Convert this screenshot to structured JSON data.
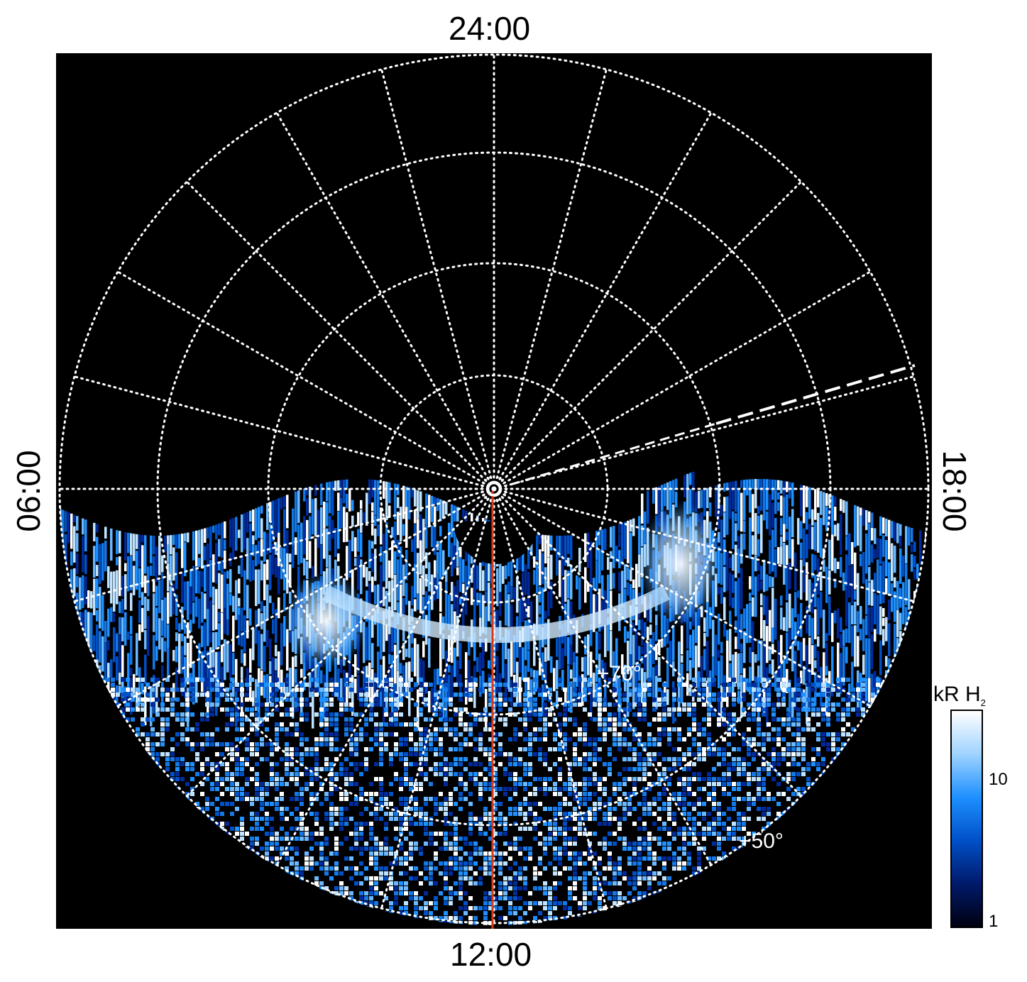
{
  "image": {
    "labels": {
      "top": "24:00",
      "bottom": "12:00",
      "left": "06:00",
      "right": "18:00"
    },
    "latitude_labels": [
      "+70°",
      "+50°"
    ],
    "colorbar": {
      "title_main": "kR H",
      "title_sub": "2",
      "ticks": [
        "10",
        "1"
      ],
      "colors": [
        "#000010",
        "#001a6b",
        "#0050c8",
        "#1e90ff",
        "#9fd3ff",
        "#ffffff"
      ]
    },
    "colors": {
      "background": "#000000",
      "grid": "#ffffff",
      "meridian": "#d23a1a"
    }
  }
}
